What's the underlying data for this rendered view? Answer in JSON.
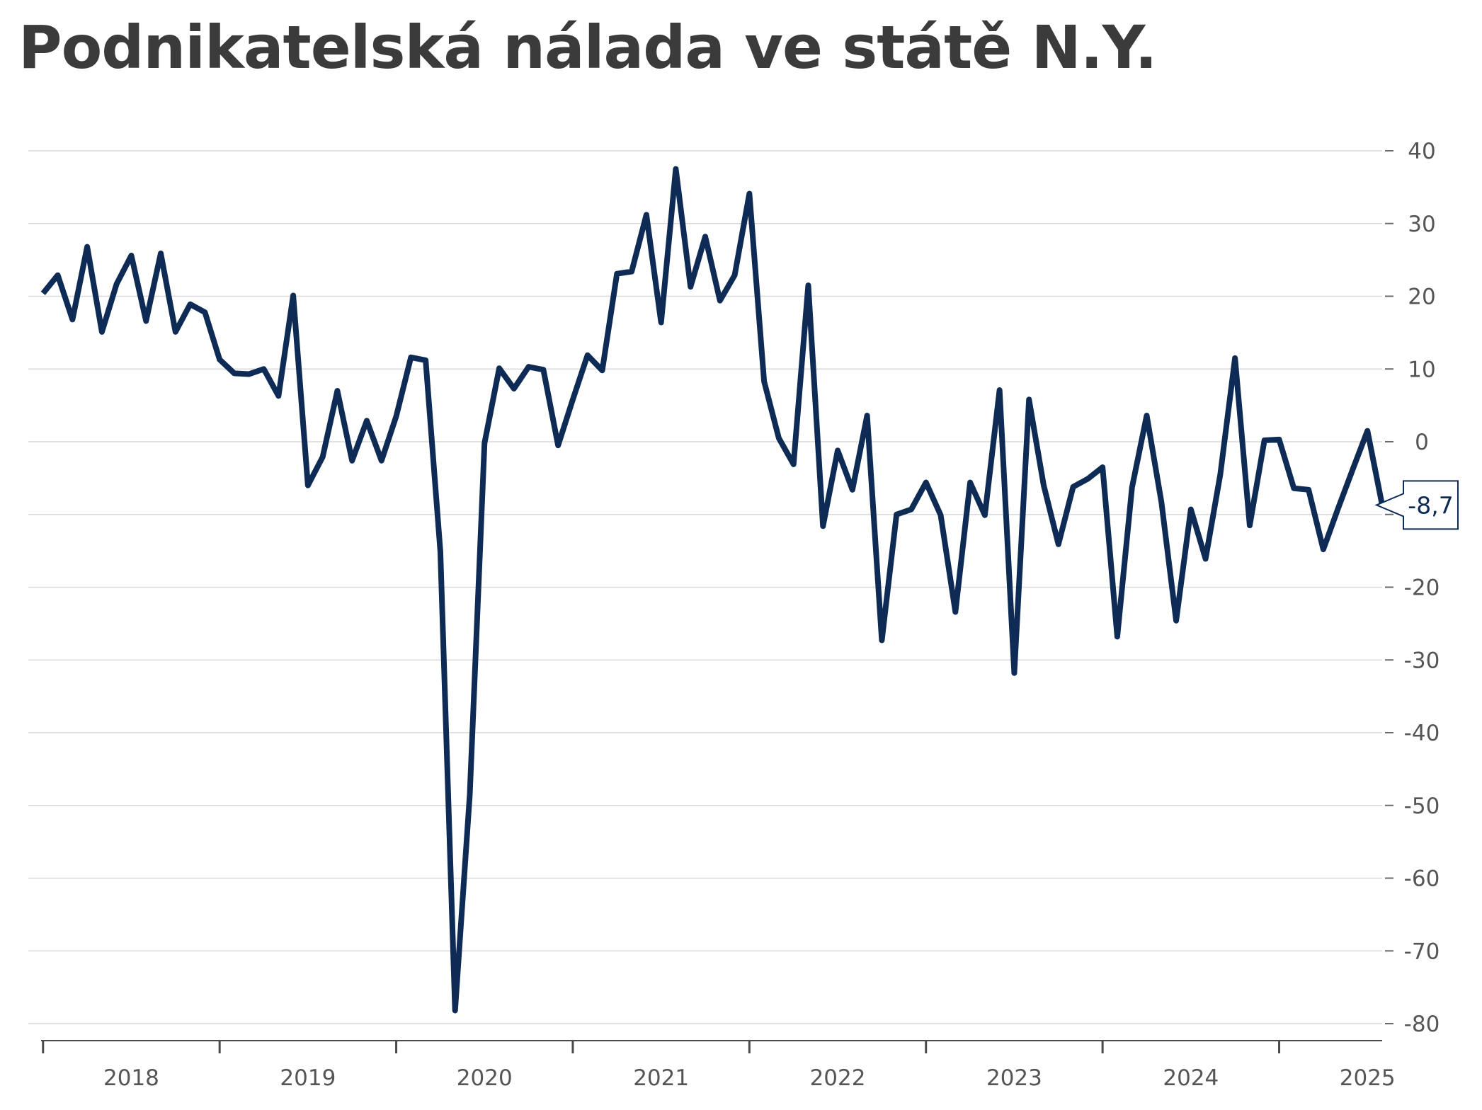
{
  "chart_data": {
    "type": "line",
    "title": "Podnikatelská nálada ve státě N.Y.",
    "xlabel": "",
    "ylabel": "",
    "x_tick_labels": [
      "2018",
      "2019",
      "2020",
      "2021",
      "2022",
      "2023",
      "2024",
      "2025"
    ],
    "y_ticks": [
      40,
      30,
      20,
      10,
      0,
      -10,
      -20,
      -30,
      -40,
      -50,
      -60,
      -70,
      -80
    ],
    "y_tick_labels": [
      "40",
      "30",
      "20",
      "10",
      "0",
      "",
      "-20",
      "-30",
      "-40",
      "-50",
      "-60",
      "-70",
      "-80"
    ],
    "ylim": [
      -80,
      40
    ],
    "xlim": [
      "2017-12",
      "2025-08"
    ],
    "grid": true,
    "legend": "none",
    "y_axis_position": "right",
    "line_color": "#0d2b55",
    "last_value_label": "-8,7",
    "series": [
      {
        "x": [
          "2018-01",
          "2018-02",
          "2018-03",
          "2018-04",
          "2018-05",
          "2018-06",
          "2018-07",
          "2018-08",
          "2018-09",
          "2018-10",
          "2018-11",
          "2018-12",
          "2019-01",
          "2019-02",
          "2019-03",
          "2019-04",
          "2019-05",
          "2019-06",
          "2019-07",
          "2019-08",
          "2019-09",
          "2019-10",
          "2019-11",
          "2019-12",
          "2020-01",
          "2020-02",
          "2020-03",
          "2020-04",
          "2020-05",
          "2020-06",
          "2020-07",
          "2020-08",
          "2020-09",
          "2020-10",
          "2020-11",
          "2020-12",
          "2021-01",
          "2021-02",
          "2021-03",
          "2021-04",
          "2021-05",
          "2021-06",
          "2021-07",
          "2021-08",
          "2021-09",
          "2021-10",
          "2021-11",
          "2021-12",
          "2022-01",
          "2022-02",
          "2022-03",
          "2022-04",
          "2022-05",
          "2022-06",
          "2022-07",
          "2022-08",
          "2022-09",
          "2022-10",
          "2022-11",
          "2022-12",
          "2023-01",
          "2023-02",
          "2023-03",
          "2023-04",
          "2023-05",
          "2023-06",
          "2023-07",
          "2023-08",
          "2023-09",
          "2023-10",
          "2023-11",
          "2023-12",
          "2024-01",
          "2024-02",
          "2024-03",
          "2024-04",
          "2024-05",
          "2024-06",
          "2024-07",
          "2024-08",
          "2024-09",
          "2024-10",
          "2024-11",
          "2024-12",
          "2025-01",
          "2025-02",
          "2025-03",
          "2025-04",
          "2025-05",
          "2025-06",
          "2025-07",
          "2025-08"
        ],
        "values": [
          20.4,
          22.9,
          16.8,
          26.8,
          15.1,
          21.7,
          25.6,
          16.6,
          25.9,
          15.1,
          18.9,
          17.8,
          11.3,
          9.4,
          9.3,
          10.0,
          6.3,
          20.1,
          -6.0,
          -2.1,
          7.0,
          -2.6,
          2.9,
          -2.6,
          3.5,
          11.6,
          11.2,
          -15.1,
          -78.2,
          -48.5,
          -0.2,
          10.1,
          7.3,
          10.3,
          9.9,
          -0.5,
          5.8,
          11.9,
          9.8,
          23.1,
          23.4,
          31.2,
          16.4,
          37.5,
          21.3,
          28.2,
          19.4,
          22.9,
          34.1,
          8.3,
          0.5,
          -3.1,
          21.5,
          -11.6,
          -1.2,
          -6.6,
          3.6,
          -27.3,
          -10.0,
          -9.3,
          -5.6,
          -10.1,
          -23.4,
          -5.6,
          -10.1,
          7.1,
          -31.8,
          5.8,
          -6.0,
          -14.1,
          -6.2,
          -5.1,
          -3.5,
          -26.8,
          -6.3,
          3.6,
          -8.3,
          -24.6,
          -9.3,
          -16.1,
          -4.5,
          11.5,
          -11.5,
          0.2,
          0.3,
          -6.4,
          -6.6,
          -14.8,
          -9.2,
          -3.8,
          1.5,
          -8.7
        ]
      }
    ]
  }
}
